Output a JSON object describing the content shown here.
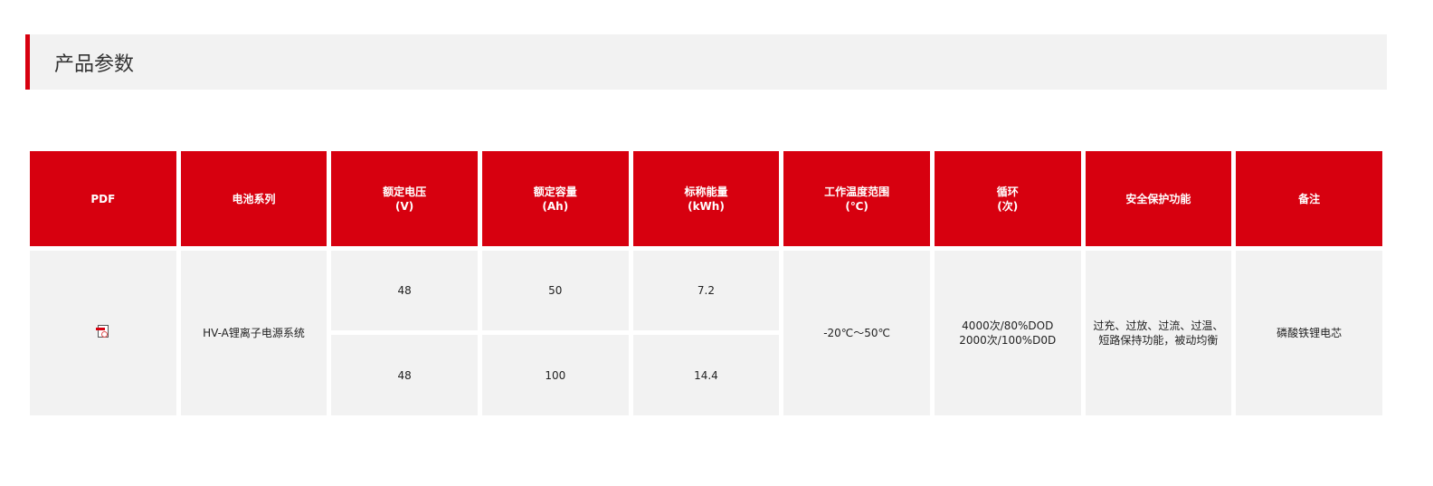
{
  "section": {
    "title": "产品参数"
  },
  "table": {
    "headers": [
      {
        "line1": "PDF",
        "line2": ""
      },
      {
        "line1": "电池系列",
        "line2": ""
      },
      {
        "line1": "额定电压",
        "line2": "(V)"
      },
      {
        "line1": "额定容量",
        "line2": "(Ah)"
      },
      {
        "line1": "标称能量",
        "line2": "(kWh)"
      },
      {
        "line1": "工作温度范围",
        "line2": "(℃)"
      },
      {
        "line1": "循环",
        "line2": "(次)"
      },
      {
        "line1": "安全保护功能",
        "line2": ""
      },
      {
        "line1": "备注",
        "line2": ""
      }
    ],
    "pdf_icon": "pdf-file-icon",
    "series": "HV-A锂离子电源系统",
    "rows": [
      {
        "voltage": "48",
        "capacity": "50",
        "energy": "7.2"
      },
      {
        "voltage": "48",
        "capacity": "100",
        "energy": "14.4"
      }
    ],
    "temperature": "-20℃～50℃",
    "cycle_line1": "4000次/80%DOD",
    "cycle_line2": "2000次/100%D0D",
    "protection_line1": "过充、过放、过流、过温、",
    "protection_line2": "短路保持功能，被动均衡",
    "remark": "磷酸铁锂电芯"
  },
  "colors": {
    "accent": "#d7000f",
    "cell_bg": "#f2f2f2"
  }
}
